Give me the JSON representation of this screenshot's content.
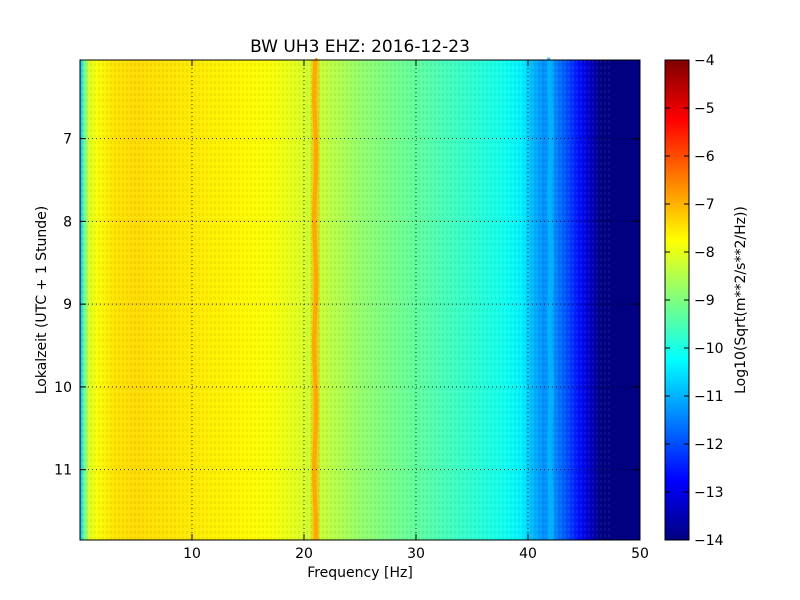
{
  "chart_data": {
    "type": "heatmap",
    "title": "BW UH3 EHZ: 2016-12-23",
    "xlabel": "Frequency [Hz]",
    "ylabel": "Lokalzeit (UTC + 1 Stunde)",
    "xlim": [
      0,
      50
    ],
    "ylim_top_to_bottom": [
      6.05,
      11.85
    ],
    "y_inverted": true,
    "x_ticks": [
      10,
      20,
      30,
      40,
      50
    ],
    "x_tick_labels": [
      "10",
      "20",
      "30",
      "40",
      "50"
    ],
    "y_ticks": [
      7,
      8,
      9,
      10,
      11
    ],
    "y_tick_labels": [
      "7",
      "8",
      "9",
      "10",
      "11"
    ],
    "grid": true,
    "colormap": "jet",
    "colorbar": {
      "label": "Log10(Sqrt(m**2/s**2/Hz))",
      "range": [
        -14,
        -4
      ],
      "ticks": [
        -4,
        -5,
        -6,
        -7,
        -8,
        -9,
        -10,
        -11,
        -12,
        -13,
        -14
      ],
      "tick_labels": [
        "−4",
        "−5",
        "−6",
        "−7",
        "−8",
        "−9",
        "−10",
        "−11",
        "−12",
        "−13",
        "−14"
      ]
    },
    "spectral_profile": {
      "frequency_hz": [
        0,
        0.3,
        0.8,
        1.5,
        3,
        5,
        8,
        12,
        15,
        17,
        19,
        20.5,
        21,
        21.5,
        23,
        25,
        28,
        30,
        33,
        36,
        38,
        39.5,
        40.5,
        41.5,
        42,
        42.5,
        43.5,
        44.5,
        45.5,
        46.5,
        50
      ],
      "log10_amplitude": [
        -11,
        -9.5,
        -8.1,
        -7.8,
        -7.5,
        -7.4,
        -7.5,
        -7.6,
        -7.7,
        -7.8,
        -8.0,
        -8.2,
        -6.9,
        -8.3,
        -8.5,
        -8.8,
        -9.1,
        -9.3,
        -9.6,
        -9.9,
        -10.1,
        -10.4,
        -11.0,
        -11.4,
        -11.0,
        -11.5,
        -12.0,
        -12.6,
        -13.3,
        -14,
        -14
      ]
    },
    "features": [
      {
        "type": "line",
        "frequency_hz": 21,
        "log10_amplitude": -6.9
      },
      {
        "type": "line",
        "frequency_hz": 42,
        "log10_amplitude": -11.0
      }
    ]
  }
}
